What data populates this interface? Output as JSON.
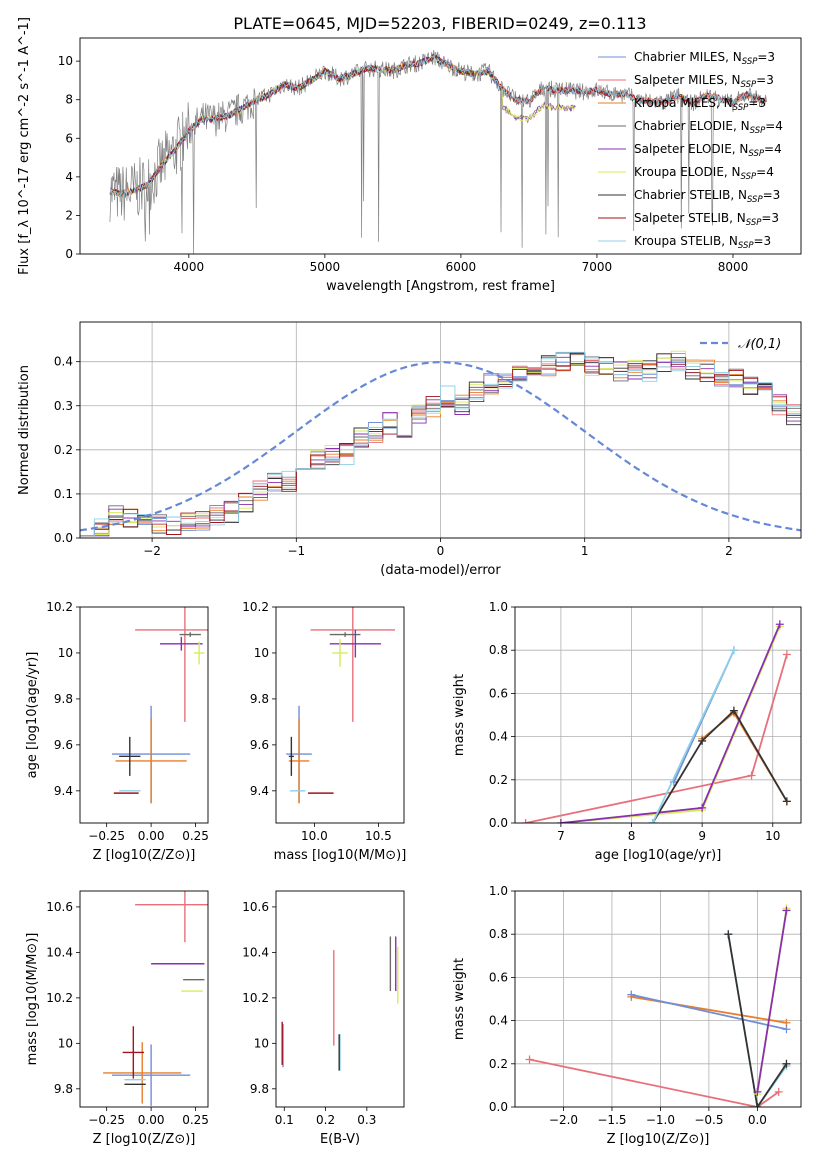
{
  "figure_title": "PLATE=0645, MJD=52203, FIBERID=0249, z=0.113",
  "colors": {
    "Chabrier MILES": "#6f8fd8",
    "Salpeter MILES": "#e8707a",
    "Kroupa MILES": "#e87e2a",
    "Chabrier ELODIE": "#6a6a6a",
    "Salpeter ELODIE": "#8a2fb0",
    "Kroupa ELODIE": "#d8ea5c",
    "Chabrier STELIB": "#333333",
    "Salpeter STELIB": "#a0141e",
    "Kroupa STELIB": "#8fd0e8",
    "Kroupa MILES chain": "#e87e2a",
    "Chabrier MILES chain": "#6f8fd8",
    "Salpeter ELODIE chain": "#9a50c0",
    "normal_curve": "#6688d8",
    "grid": "#b0b0b0",
    "mag_line": "#e680c0"
  },
  "chart_data": [
    {
      "id": "spectrum",
      "type": "line",
      "title": "PLATE=0645, MJD=52203, FIBERID=0249, z=0.113",
      "xlabel": "wavelength [Angstrom, rest frame]",
      "ylabel": "Flux [f_λ 10^-17 erg cm^-2 s^-1 A^-1]",
      "xlim": [
        3200,
        8500
      ],
      "ylim": [
        0,
        11.2
      ],
      "xticks": [
        4000,
        5000,
        6000,
        7000,
        8000
      ],
      "yticks": [
        0,
        2,
        4,
        6,
        8,
        10
      ],
      "legend": [
        {
          "label": "Chabrier MILES, N",
          "sub": "SSP",
          "tail": "=3"
        },
        {
          "label": "Salpeter MILES, N",
          "sub": "SSP",
          "tail": "=3"
        },
        {
          "label": "Kroupa MILES, N",
          "sub": "SSP",
          "tail": "=3"
        },
        {
          "label": "Chabrier ELODIE, N",
          "sub": "SSP",
          "tail": "=4"
        },
        {
          "label": "Salpeter ELODIE, N",
          "sub": "SSP",
          "tail": "=4"
        },
        {
          "label": "Kroupa ELODIE, N",
          "sub": "SSP",
          "tail": "=4"
        },
        {
          "label": "Chabrier STELIB, N",
          "sub": "SSP",
          "tail": "=3"
        },
        {
          "label": "Salpeter STELIB, N",
          "sub": "SSP",
          "tail": "=3"
        },
        {
          "label": "Kroupa STELIB, N",
          "sub": "SSP",
          "tail": "=3"
        }
      ],
      "legend_position": "top-right",
      "model_points": [
        [
          3400,
          3.3
        ],
        [
          3500,
          3.1
        ],
        [
          3600,
          3.3
        ],
        [
          3700,
          3.6
        ],
        [
          3800,
          4.6
        ],
        [
          3900,
          5.4
        ],
        [
          4000,
          6.4
        ],
        [
          4100,
          7.0
        ],
        [
          4200,
          7.0
        ],
        [
          4300,
          7.2
        ],
        [
          4400,
          7.6
        ],
        [
          4500,
          8.0
        ],
        [
          4600,
          8.3
        ],
        [
          4700,
          8.8
        ],
        [
          4800,
          8.6
        ],
        [
          4900,
          9.0
        ],
        [
          5000,
          9.5
        ],
        [
          5100,
          9.1
        ],
        [
          5200,
          9.3
        ],
        [
          5300,
          9.6
        ],
        [
          5400,
          9.6
        ],
        [
          5500,
          9.5
        ],
        [
          5600,
          9.8
        ],
        [
          5700,
          9.9
        ],
        [
          5800,
          10.2
        ],
        [
          5900,
          9.8
        ],
        [
          6000,
          9.5
        ],
        [
          6100,
          9.3
        ],
        [
          6200,
          9.5
        ],
        [
          6300,
          8.6
        ],
        [
          6400,
          8.0
        ],
        [
          6500,
          7.9
        ],
        [
          6600,
          8.6
        ],
        [
          6700,
          8.5
        ],
        [
          6800,
          8.5
        ],
        [
          6900,
          8.4
        ],
        [
          7000,
          8.5
        ],
        [
          7100,
          8.3
        ],
        [
          7200,
          8.3
        ],
        [
          7300,
          8.0
        ],
        [
          7400,
          7.9
        ],
        [
          7500,
          7.9
        ],
        [
          7600,
          8.2
        ],
        [
          7700,
          7.8
        ],
        [
          7800,
          8.2
        ],
        [
          7900,
          8.1
        ],
        [
          8000,
          7.8
        ],
        [
          8100,
          8.3
        ],
        [
          8200,
          8.0
        ],
        [
          8250,
          7.9
        ]
      ]
    },
    {
      "id": "residuals",
      "type": "histogram",
      "xlabel": "(data-model)/error",
      "ylabel": "Normed distribution",
      "xlim": [
        -2.5,
        2.5
      ],
      "ylim": [
        0,
        0.49
      ],
      "xticks": [
        -2,
        -1,
        0,
        1,
        2
      ],
      "yticks": [
        0.0,
        0.1,
        0.2,
        0.3,
        0.4
      ],
      "legend": "𝒩(0,1)",
      "legend_position": "top-right",
      "bin_width": 0.1,
      "bin_start": -2.5,
      "hist_values": [
        0.03,
        0.02,
        0.05,
        0.05,
        0.03,
        0.03,
        0.03,
        0.04,
        0.04,
        0.05,
        0.06,
        0.08,
        0.11,
        0.13,
        0.13,
        0.16,
        0.18,
        0.19,
        0.19,
        0.23,
        0.24,
        0.26,
        0.24,
        0.28,
        0.3,
        0.32,
        0.3,
        0.33,
        0.35,
        0.36,
        0.38,
        0.38,
        0.39,
        0.4,
        0.4,
        0.39,
        0.39,
        0.38,
        0.38,
        0.38,
        0.4,
        0.4,
        0.38,
        0.38,
        0.36,
        0.36,
        0.35,
        0.34,
        0.3,
        0.28,
        0.28,
        0.27,
        0.26,
        0.24,
        0.23,
        0.22,
        0.2,
        0.2,
        0.18,
        0.17,
        0.16,
        0.15,
        0.15,
        0.14,
        0.12,
        0.11,
        0.1,
        0.08,
        0.08,
        0.07,
        0.06,
        0.06,
        0.05,
        0.05,
        0.04,
        0.04,
        0.03,
        0.04,
        0.03,
        0.03,
        0.03,
        0.03,
        0.03,
        0.03,
        0.04,
        0.03,
        0.04,
        0.04,
        0.04,
        0.04
      ]
    },
    {
      "id": "age_vs_Z",
      "type": "errorbar",
      "xlabel": "Z [log10(Z/Z⊙)]",
      "ylabel": "age  [log10(age/yr)]",
      "xlim": [
        -0.4,
        0.32
      ],
      "ylim": [
        9.26,
        10.2
      ],
      "xticks": [
        -0.25,
        0.0,
        0.25
      ],
      "xticklabels": [
        "−0.25",
        "0.00",
        "0.25"
      ],
      "yticks": [
        9.4,
        9.6,
        9.8,
        10.0,
        10.2
      ],
      "points": [
        {
          "model": "Chabrier MILES",
          "x": 0.0,
          "xerr": 0.22,
          "y": 9.56,
          "yerr": 0.42
        },
        {
          "model": "Salpeter MILES",
          "x": 0.19,
          "xerr": 0.28,
          "y": 10.1,
          "yerr": 0.8
        },
        {
          "model": "Kroupa MILES",
          "x": 0.0,
          "xerr": 0.2,
          "y": 9.53,
          "yerr": 0.37
        },
        {
          "model": "Chabrier ELODIE",
          "x": 0.22,
          "xerr": 0.06,
          "y": 10.08,
          "yerr": 0.02
        },
        {
          "model": "Salpeter ELODIE",
          "x": 0.17,
          "xerr": 0.12,
          "y": 10.04,
          "yerr": 0.06
        },
        {
          "model": "Kroupa ELODIE",
          "x": 0.27,
          "xerr": 0.03,
          "y": 10.0,
          "yerr": 0.1
        },
        {
          "model": "Chabrier STELIB",
          "x": -0.12,
          "xerr": 0.06,
          "y": 9.55,
          "yerr": 0.17
        },
        {
          "model": "Salpeter STELIB",
          "x": -0.14,
          "xerr": 0.07,
          "y": 9.39,
          "yerr": 0.0
        },
        {
          "model": "Kroupa STELIB",
          "x": -0.12,
          "xerr": 0.06,
          "y": 9.4,
          "yerr": 0.0
        }
      ]
    },
    {
      "id": "age_vs_mass",
      "type": "errorbar",
      "xlabel": "mass [log10(M/M⊙)]",
      "xlim": [
        9.7,
        10.7
      ],
      "ylim": [
        9.26,
        10.2
      ],
      "xticks": [
        10.0,
        10.5
      ],
      "xticklabels": [
        "10.0",
        "10.5"
      ],
      "yticks": [
        9.4,
        9.6,
        9.8,
        10.0,
        10.2
      ],
      "points": [
        {
          "model": "Chabrier MILES",
          "x": 9.88,
          "xerr": 0.1,
          "y": 9.56,
          "yerr": 0.42
        },
        {
          "model": "Salpeter MILES",
          "x": 10.3,
          "xerr": 0.33,
          "y": 10.1,
          "yerr": 0.8
        },
        {
          "model": "Kroupa MILES",
          "x": 9.88,
          "xerr": 0.08,
          "y": 9.53,
          "yerr": 0.37
        },
        {
          "model": "Chabrier ELODIE",
          "x": 10.24,
          "xerr": 0.12,
          "y": 10.08,
          "yerr": 0.02
        },
        {
          "model": "Salpeter ELODIE",
          "x": 10.32,
          "xerr": 0.2,
          "y": 10.04,
          "yerr": 0.12
        },
        {
          "model": "Kroupa ELODIE",
          "x": 10.2,
          "xerr": 0.06,
          "y": 10.0,
          "yerr": 0.12
        },
        {
          "model": "Chabrier STELIB",
          "x": 9.82,
          "xerr": 0.02,
          "y": 9.55,
          "yerr": 0.17
        },
        {
          "model": "Salpeter STELIB",
          "x": 10.05,
          "xerr": 0.1,
          "y": 9.39,
          "yerr": 0.0
        },
        {
          "model": "Kroupa STELIB",
          "x": 9.87,
          "xerr": 0.06,
          "y": 9.4,
          "yerr": 0.0
        }
      ]
    },
    {
      "id": "mass_weight_vs_age",
      "type": "line",
      "xlabel": "age  [log10(age/yr)]",
      "ylabel": "mass weight",
      "xlim": [
        6.35,
        10.4
      ],
      "ylim": [
        0,
        1.0
      ],
      "xticks": [
        7,
        8,
        9,
        10
      ],
      "yticks": [
        0.0,
        0.2,
        0.4,
        0.6,
        0.8,
        1.0
      ],
      "series": [
        {
          "model": "Chabrier MILES",
          "x": [
            8.6,
            9.45
          ],
          "y": [
            0.19,
            0.8
          ]
        },
        {
          "model": "Kroupa MILES",
          "x": [
            9.0,
            9.45,
            10.2
          ],
          "y": [
            0.39,
            0.51,
            0.1
          ]
        },
        {
          "model": "Salpeter MILES",
          "x": [
            6.5,
            9.7,
            10.2
          ],
          "y": [
            0.0,
            0.22,
            0.78
          ]
        },
        {
          "model": "Kroupa ELODIE",
          "x": [
            7.0,
            9.0,
            10.1
          ],
          "y": [
            0.0,
            0.06,
            0.91
          ]
        },
        {
          "model": "Salpeter ELODIE",
          "x": [
            7.0,
            9.0,
            10.1
          ],
          "y": [
            0.0,
            0.07,
            0.92
          ]
        },
        {
          "model": "Chabrier STELIB",
          "x": [
            8.3,
            9.0,
            9.45,
            10.2
          ],
          "y": [
            0.0,
            0.38,
            0.52,
            0.1
          ]
        },
        {
          "model": "Kroupa STELIB",
          "x": [
            8.3,
            9.45
          ],
          "y": [
            0.0,
            0.8
          ]
        }
      ]
    },
    {
      "id": "mass_vs_Z",
      "type": "errorbar",
      "xlabel": "Z [log10(Z/Z⊙)]",
      "ylabel": "mass [log10(M/M⊙)]",
      "xlim": [
        -0.4,
        0.32
      ],
      "ylim": [
        9.72,
        10.67
      ],
      "xticks": [
        -0.25,
        0.0,
        0.25
      ],
      "xticklabels": [
        "−0.25",
        "0.00",
        "0.25"
      ],
      "yticks": [
        9.8,
        10.0,
        10.2,
        10.4,
        10.6
      ],
      "points": [
        {
          "model": "Chabrier MILES",
          "x": 0.0,
          "xerr": 0.22,
          "y": 9.86,
          "yerr": 0.27
        },
        {
          "model": "Salpeter MILES",
          "x": 0.19,
          "xerr": 0.28,
          "y": 10.61,
          "yerr": 0.33
        },
        {
          "model": "Kroupa MILES",
          "x": -0.05,
          "xerr": 0.22,
          "y": 9.87,
          "yerr": 0.27
        },
        {
          "model": "Chabrier ELODIE",
          "x": 0.24,
          "xerr": 0.06,
          "y": 10.28,
          "yerr": 0.0
        },
        {
          "model": "Salpeter ELODIE",
          "x": 0.15,
          "xerr": 0.15,
          "y": 10.35,
          "yerr": 0.0
        },
        {
          "model": "Kroupa ELODIE",
          "x": 0.23,
          "xerr": 0.06,
          "y": 10.23,
          "yerr": 0.0
        },
        {
          "model": "Chabrier STELIB",
          "x": -0.09,
          "xerr": 0.06,
          "y": 9.82,
          "yerr": 0.0
        },
        {
          "model": "Salpeter STELIB",
          "x": -0.1,
          "xerr": 0.06,
          "y": 9.96,
          "yerr": 0.23
        },
        {
          "model": "Kroupa STELIB",
          "x": -0.09,
          "xerr": 0.06,
          "y": 9.84,
          "yerr": 0.0
        }
      ]
    },
    {
      "id": "mass_vs_EBV",
      "type": "errorbar",
      "xlabel": "E(B-V)",
      "xlim": [
        0.08,
        0.39
      ],
      "ylim": [
        9.72,
        10.67
      ],
      "xticks": [
        0.1,
        0.2,
        0.3
      ],
      "xticklabels": [
        "0.1",
        "0.2",
        "0.3"
      ],
      "yticks": [
        9.8,
        10.0,
        10.2,
        10.4,
        10.6
      ],
      "points": [
        {
          "model": "Chabrier MILES",
          "x": 0.097,
          "y": 9.99,
          "yerr": 0.19
        },
        {
          "model": "Salpeter MILES",
          "x": 0.22,
          "y": 10.2,
          "yerr": 0.42
        },
        {
          "model": "Chabrier ELODIE",
          "x": 0.357,
          "y": 10.35,
          "yerr": 0.24
        },
        {
          "model": "Salpeter ELODIE",
          "x": 0.37,
          "y": 10.35,
          "yerr": 0.24
        },
        {
          "model": "Kroupa ELODIE",
          "x": 0.375,
          "y": 10.3,
          "yerr": 0.25
        },
        {
          "model": "Salpeter STELIB",
          "x": 0.095,
          "y": 10.0,
          "yerr": 0.19
        },
        {
          "model": "Kroupa STELIB",
          "x": 0.235,
          "y": 9.96,
          "yerr": 0.16
        },
        {
          "model": "Chabrier STELIB",
          "x": 0.233,
          "y": 9.96,
          "yerr": 0.16
        }
      ]
    },
    {
      "id": "mass_weight_vs_Z",
      "type": "line",
      "xlabel": "Z [log10(Z/Z⊙)]",
      "ylabel": "mass weight",
      "xlim": [
        -2.5,
        0.45
      ],
      "ylim": [
        0,
        1.0
      ],
      "xticks": [
        -2.0,
        -1.5,
        -1.0,
        -0.5,
        0.0
      ],
      "xticklabels": [
        "−2.0",
        "−1.5",
        "−1.0",
        "−0.5",
        "0.0"
      ],
      "yticks": [
        0.0,
        0.2,
        0.4,
        0.6,
        0.8,
        1.0
      ],
      "series": [
        {
          "model": "Kroupa MILES",
          "x": [
            -1.3,
            0.3
          ],
          "y": [
            0.51,
            0.39
          ]
        },
        {
          "model": "Chabrier MILES",
          "x": [
            -1.3,
            0.3
          ],
          "y": [
            0.52,
            0.36
          ]
        },
        {
          "model": "Salpeter MILES",
          "x": [
            -2.35,
            0.0,
            0.22
          ],
          "y": [
            0.22,
            0.0,
            0.07
          ]
        },
        {
          "model": "Kroupa STELIB",
          "x": [
            -0.3,
            0.0,
            0.3
          ],
          "y": [
            0.8,
            0.0,
            0.19
          ]
        },
        {
          "model": "Chabrier STELIB",
          "x": [
            -0.3,
            0.0,
            0.3
          ],
          "y": [
            0.8,
            0.0,
            0.2
          ]
        },
        {
          "model": "Kroupa ELODIE",
          "x": [
            0.0,
            0.3
          ],
          "y": [
            0.06,
            0.92
          ]
        },
        {
          "model": "Salpeter ELODIE",
          "x": [
            0.0,
            0.3
          ],
          "y": [
            0.07,
            0.91
          ]
        }
      ]
    }
  ]
}
